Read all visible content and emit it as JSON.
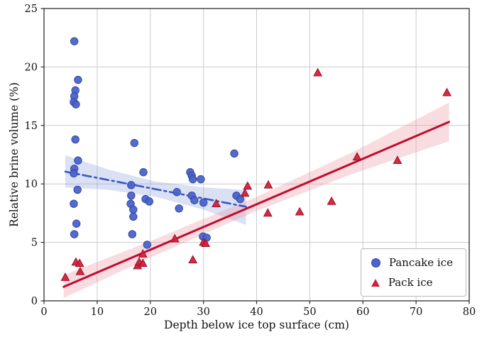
{
  "chart_data": {
    "type": "scatter",
    "title": "",
    "xlabel": "Depth below ice top surface (cm)",
    "ylabel": "Relative brine volume (%)",
    "xlim": [
      0,
      80
    ],
    "ylim": [
      0,
      25
    ],
    "xticks": [
      0,
      10,
      20,
      30,
      40,
      50,
      60,
      70,
      80
    ],
    "yticks": [
      0,
      5,
      10,
      15,
      20,
      25
    ],
    "grid": true,
    "legend_position": "lower right",
    "series": [
      {
        "name": "Pancake ice",
        "marker": "circle",
        "color": "#4a63cf",
        "edge_color": "#32479e",
        "line_color": "#3a55c8",
        "band_color": "#8fa3dd",
        "band_opacity": 0.32,
        "points": [
          [
            5.7,
            22.2
          ],
          [
            6.4,
            18.9
          ],
          [
            5.9,
            18.0
          ],
          [
            5.7,
            17.5
          ],
          [
            5.6,
            17.0
          ],
          [
            6.0,
            16.8
          ],
          [
            5.9,
            13.8
          ],
          [
            6.4,
            12.0
          ],
          [
            5.7,
            11.3
          ],
          [
            5.6,
            10.9
          ],
          [
            6.3,
            9.5
          ],
          [
            5.6,
            8.3
          ],
          [
            6.1,
            6.6
          ],
          [
            5.7,
            5.7
          ],
          [
            17.0,
            13.5
          ],
          [
            16.4,
            9.9
          ],
          [
            16.4,
            9.0
          ],
          [
            16.3,
            8.3
          ],
          [
            16.8,
            7.8
          ],
          [
            16.8,
            7.2
          ],
          [
            16.6,
            5.7
          ],
          [
            18.7,
            11.0
          ],
          [
            19.1,
            8.7
          ],
          [
            19.8,
            8.5
          ],
          [
            19.4,
            4.8
          ],
          [
            25.0,
            9.3
          ],
          [
            25.4,
            7.9
          ],
          [
            27.5,
            11.0
          ],
          [
            27.8,
            10.7
          ],
          [
            28.0,
            10.4
          ],
          [
            27.8,
            9.0
          ],
          [
            28.3,
            8.6
          ],
          [
            29.5,
            10.4
          ],
          [
            30.0,
            8.4
          ],
          [
            29.9,
            5.5
          ],
          [
            30.6,
            5.4
          ],
          [
            35.8,
            12.6
          ],
          [
            36.2,
            9.0
          ],
          [
            36.9,
            8.7
          ]
        ],
        "trend": {
          "style": "dashdot",
          "dash": "12 5 3 5",
          "width": 2.6,
          "x": [
            4,
            38
          ],
          "y": [
            11.05,
            8.05
          ]
        },
        "band": {
          "x": [
            4,
            12,
            21,
            30,
            38
          ],
          "upper": [
            12.45,
            11.25,
            10.2,
            9.7,
            9.5
          ],
          "lower": [
            9.7,
            9.5,
            8.9,
            7.8,
            6.5
          ]
        }
      },
      {
        "name": "Pack ice",
        "marker": "triangle",
        "color": "#d21f3c",
        "edge_color": "#9c1226",
        "line_color": "#c10b2e",
        "band_color": "#eb9aa6",
        "band_opacity": 0.35,
        "points": [
          [
            4.0,
            2.0
          ],
          [
            6.0,
            3.3
          ],
          [
            6.7,
            3.2
          ],
          [
            6.8,
            2.5
          ],
          [
            17.6,
            3.0
          ],
          [
            17.9,
            3.3
          ],
          [
            18.6,
            4.0
          ],
          [
            18.6,
            3.2
          ],
          [
            24.6,
            5.3
          ],
          [
            28.0,
            3.5
          ],
          [
            30.0,
            5.0
          ],
          [
            30.4,
            4.9
          ],
          [
            32.4,
            8.3
          ],
          [
            37.8,
            9.2
          ],
          [
            38.3,
            9.8
          ],
          [
            42.2,
            9.9
          ],
          [
            42.1,
            7.5
          ],
          [
            48.1,
            7.6
          ],
          [
            51.5,
            19.5
          ],
          [
            54.1,
            8.5
          ],
          [
            58.9,
            12.3
          ],
          [
            66.5,
            12.0
          ],
          [
            75.8,
            17.8
          ]
        ],
        "trend": {
          "style": "solid",
          "dash": "",
          "width": 3.0,
          "x": [
            3.7,
            76.2
          ],
          "y": [
            1.2,
            15.3
          ]
        },
        "band": {
          "x": [
            3.7,
            20,
            40,
            58,
            76.2
          ],
          "upper": [
            2.2,
            5.1,
            8.9,
            12.7,
            16.95
          ],
          "lower": [
            0.25,
            3.7,
            7.7,
            10.85,
            13.65
          ]
        }
      }
    ]
  }
}
